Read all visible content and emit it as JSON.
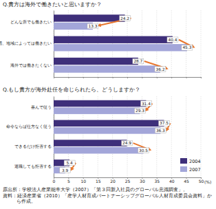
{
  "chart_data": [
    {
      "type": "bar",
      "orientation": "horizontal",
      "title": "Q.貴方は海外で働きたいと思いますか？",
      "categories": [
        "どんな所でも働きたい",
        "国、地域によっては働きたい",
        "海外では働きたくない"
      ],
      "series": [
        {
          "color": "#3e2f7a",
          "values": [
            24.2,
            40.4,
            28.7
          ]
        },
        {
          "color": "#a3a6d9",
          "values": [
            13.3,
            45.3,
            36.2
          ]
        }
      ],
      "xlim": [
        0,
        50
      ],
      "xticks": [
        0,
        5,
        10,
        15,
        20,
        25,
        30,
        35,
        40,
        45,
        50
      ],
      "grid": true,
      "data_labels": true,
      "tick_labels": "y"
    },
    {
      "type": "bar",
      "orientation": "horizontal",
      "title": "Q.もし貴方が海外赴任を命じられたら、どうしますか？",
      "categories": [
        "喜んで従う",
        "命令ならば仕方なく従う",
        "できるだけ拒否する",
        "退職しても拒否する"
      ],
      "series": [
        {
          "name": "2004",
          "color": "#3e2f7a",
          "values": [
            31.4,
            37.5,
            24.9,
            5.4
          ]
        },
        {
          "name": "2007",
          "color": "#a3a6d9",
          "values": [
            29.3,
            36.3,
            30.5,
            3.9
          ]
        }
      ],
      "xlim": [
        0,
        50
      ],
      "xticks": [
        0,
        5,
        10,
        15,
        20,
        25,
        30,
        35,
        40,
        45,
        50
      ],
      "xlabel": "(%)",
      "grid": true,
      "data_labels": true,
      "legend": "lower right"
    }
  ],
  "notes": [
    "原出所：学校法人産業能率大学（2007）「第３回新入社員のグローバル意識調査」。",
    "資料：経済産業省（2010）「産学人材育成パートナーシップグローバル人材育成委員会資料」から作成。"
  ]
}
